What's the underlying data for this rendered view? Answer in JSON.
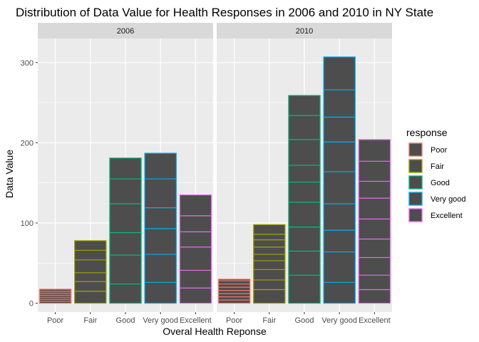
{
  "chart_data": {
    "type": "bar",
    "title": "Distribution of Data Value for Health Responses in 2006 and 2010 in NY State",
    "xlabel": "Overal Health Reponse",
    "ylabel": "Data Value",
    "ylim": [
      0,
      330
    ],
    "yticks": [
      0,
      100,
      200,
      300
    ],
    "grid": true,
    "categories": [
      "Poor",
      "Fair",
      "Good",
      "Very good",
      "Excellent"
    ],
    "facets": [
      {
        "label": "2006",
        "values": [
          17.5,
          78,
          181,
          187,
          135
        ],
        "segments": [
          [
            2.5,
            5,
            7.5,
            10,
            12.5,
            15
          ],
          [
            15,
            27,
            38,
            54,
            66
          ],
          [
            24,
            60,
            88,
            124,
            155
          ],
          [
            26,
            61,
            93,
            119,
            155
          ],
          [
            19,
            41,
            70,
            89,
            109
          ]
        ]
      },
      {
        "label": "2010",
        "values": [
          30,
          98,
          259,
          307,
          204
        ],
        "segments": [
          [
            4,
            8,
            12,
            16,
            20,
            24,
            28
          ],
          [
            17,
            29,
            42,
            53,
            61,
            70,
            79,
            86
          ],
          [
            35,
            65,
            95,
            126,
            151,
            172,
            204,
            234
          ],
          [
            26,
            64,
            91,
            124,
            164,
            201,
            232,
            266
          ],
          [
            17,
            35,
            57,
            80,
            105,
            131,
            152,
            177
          ]
        ]
      }
    ],
    "legend": {
      "title": "response",
      "position": "right",
      "entries": [
        {
          "label": "Poor",
          "color": "#F8766D"
        },
        {
          "label": "Fair",
          "color": "#A3A500"
        },
        {
          "label": "Good",
          "color": "#00BF7D"
        },
        {
          "label": "Very good",
          "color": "#00B0F6"
        },
        {
          "label": "Excellent",
          "color": "#E76BF3"
        }
      ]
    },
    "colors": {
      "panel_bg": "#EBEBEB",
      "strip_bg": "#D9D9D9",
      "bar_fill": "#4D4D4D",
      "grid": "#FFFFFF"
    }
  }
}
